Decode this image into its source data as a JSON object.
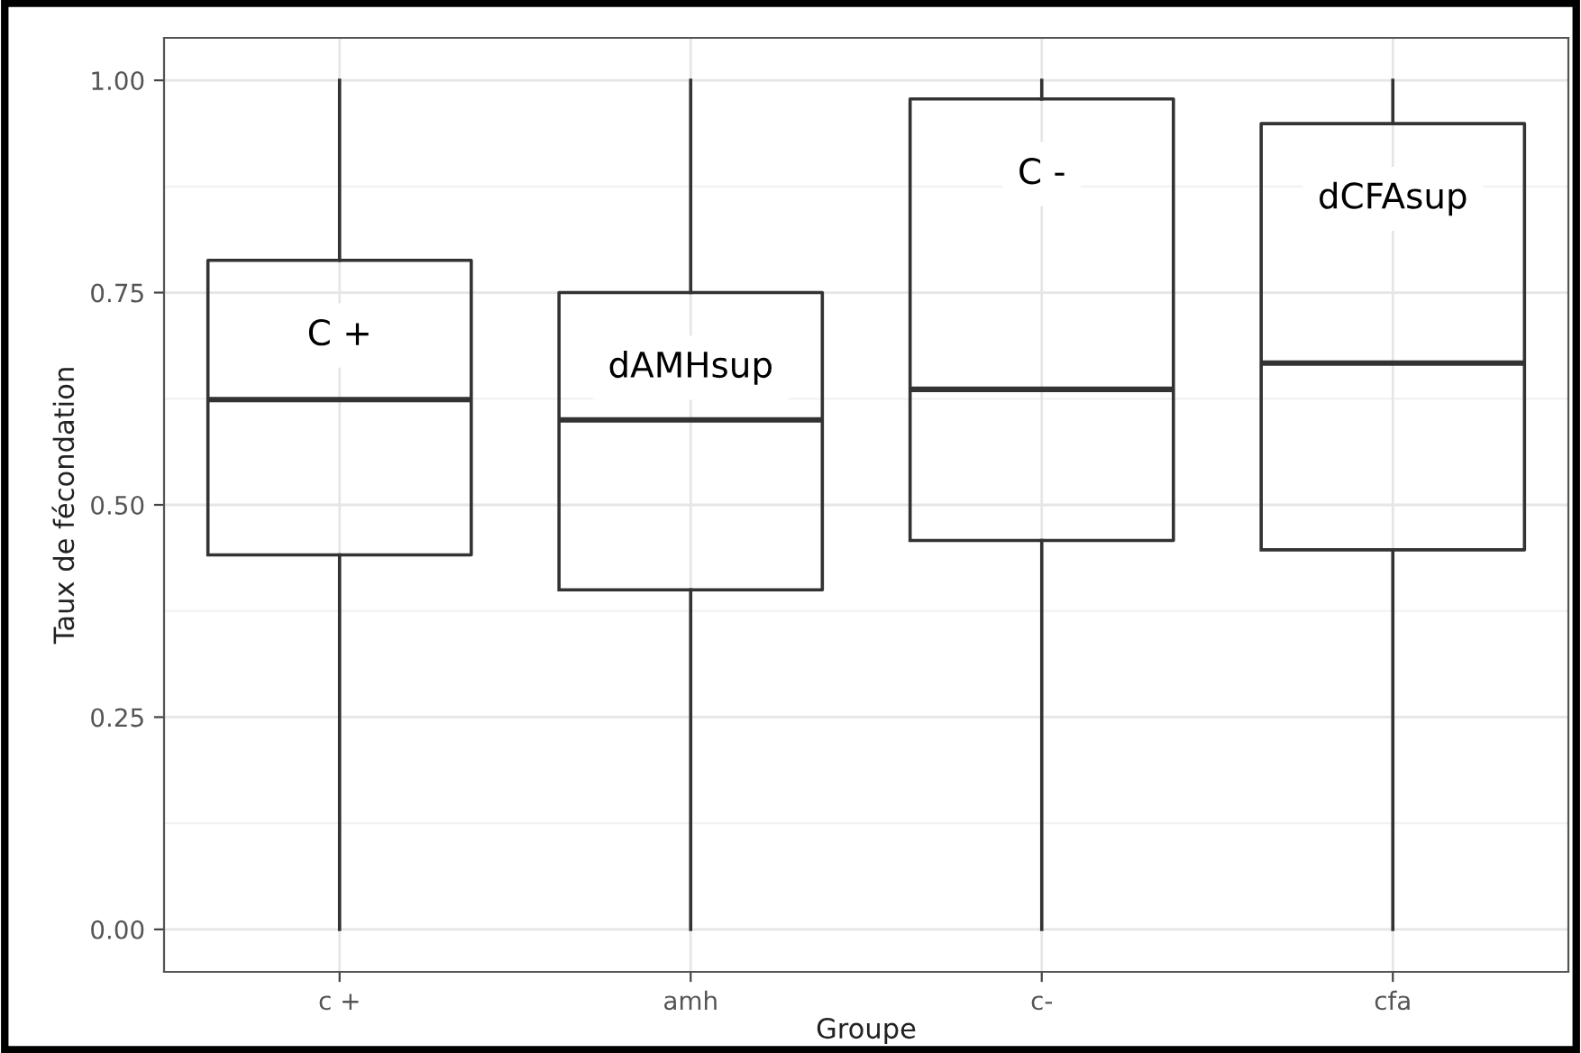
{
  "chart_data": {
    "type": "box",
    "xlabel": "Groupe",
    "ylabel": "Taux de fécondation",
    "categories": [
      "c +",
      "amh",
      "c-",
      "cfa"
    ],
    "boxes": [
      {
        "low": 0,
        "q1": 0.441,
        "median": 0.624,
        "q3": 0.788,
        "high": 1
      },
      {
        "low": 0,
        "q1": 0.4,
        "median": 0.6,
        "q3": 0.75,
        "high": 1
      },
      {
        "low": 0,
        "q1": 0.458,
        "median": 0.636,
        "q3": 0.978,
        "high": 1
      },
      {
        "low": 0,
        "q1": 0.447,
        "median": 0.667,
        "q3": 0.949,
        "high": 1
      }
    ],
    "color": "#333333",
    "ylim": [
      -0.05,
      1.05
    ],
    "yticks": [
      {
        "value": 0,
        "label": "0.00"
      },
      {
        "value": 0.25,
        "label": "0.25"
      },
      {
        "value": 0.5,
        "label": "0.50"
      },
      {
        "value": 0.75,
        "label": "0.75"
      },
      {
        "value": 1,
        "label": "1.00"
      }
    ],
    "grid": true,
    "annotations": [
      "C +",
      "dAMHsup",
      "C -",
      "dCFAsup"
    ]
  }
}
